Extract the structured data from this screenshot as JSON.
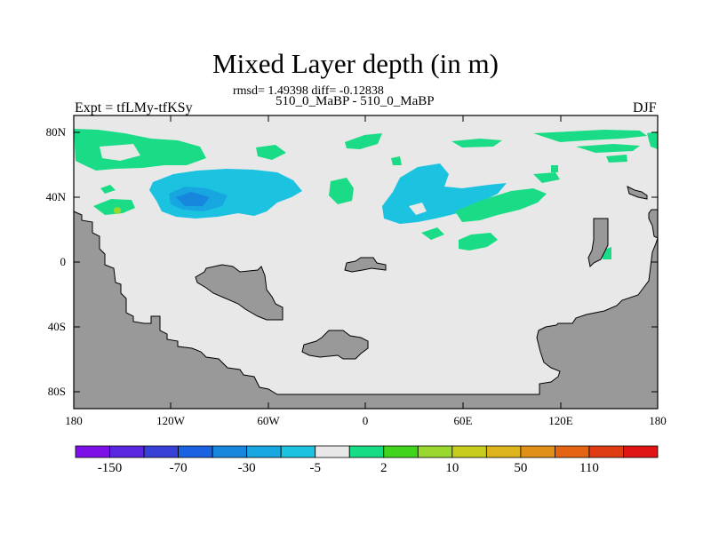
{
  "title": "Mixed Layer depth (in m)",
  "stats_line": "rmsd= 1.49398 diff= -0.12838",
  "subtitle": "510_0_MaBP - 510_0_MaBP",
  "left_label": "Expt = tfLMy-tfKSy",
  "right_label": "DJF",
  "map": {
    "lat_ticks": [
      "80N",
      "40N",
      "0",
      "40S",
      "80S"
    ],
    "lon_ticks": [
      "180",
      "120W",
      "60W",
      "0",
      "60E",
      "120E",
      "180"
    ],
    "land_color": "#999999",
    "ocean_color": "#e8e8e8"
  },
  "colorbar": {
    "colors": [
      "#7d10e8",
      "#5a26e0",
      "#3840d8",
      "#1a62e0",
      "#1787de",
      "#17a6e0",
      "#1bc3e0",
      "#e8e8e8",
      "#17dc86",
      "#40d41c",
      "#9ad830",
      "#c8cc1c",
      "#dcb41c",
      "#e09016",
      "#e46414",
      "#e03c14",
      "#e01414"
    ],
    "tick_labels": [
      "-150",
      "-70",
      "-30",
      "-5",
      "2",
      "10",
      "50",
      "110"
    ]
  }
}
